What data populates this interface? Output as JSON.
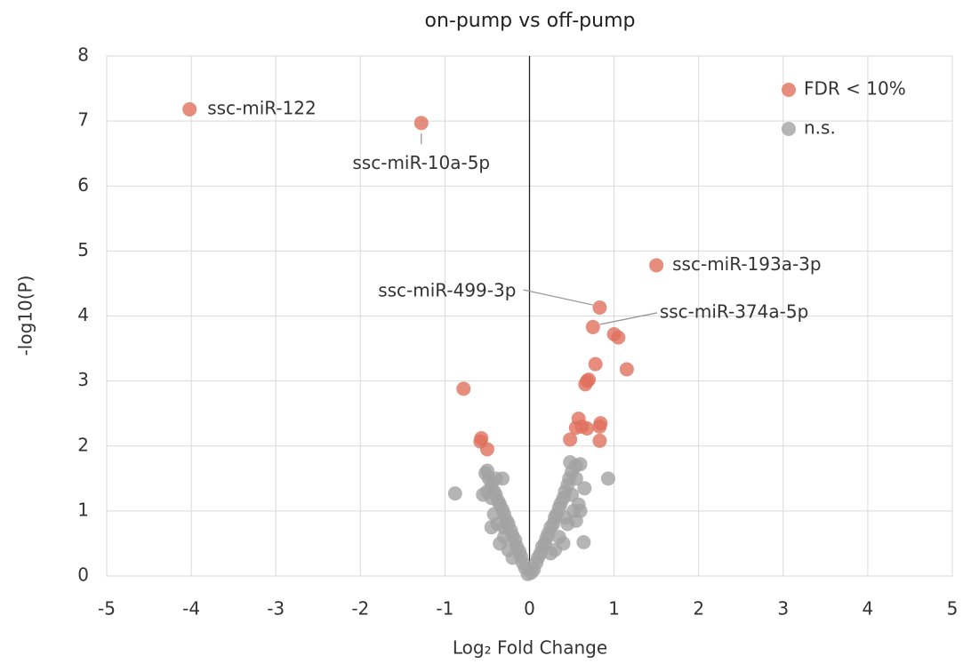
{
  "chart_data": {
    "type": "scatter",
    "title": "on-pump vs off-pump",
    "xlabel": "Log₂ Fold Change",
    "ylabel": "-log10(P)",
    "xlim": [
      -5,
      5
    ],
    "xticks": [
      -5,
      -4,
      -3,
      -2,
      -1,
      0,
      1,
      2,
      3,
      4,
      5
    ],
    "ylim": [
      0,
      8
    ],
    "yticks": [
      0,
      1,
      2,
      3,
      4,
      5,
      6,
      7,
      8
    ],
    "grid": true,
    "legend": "upper right",
    "series": [
      {
        "name": "FDR < 10%",
        "color": "#e0705e",
        "x": [
          -4.02,
          -1.28,
          1.5,
          0.83,
          0.75,
          1.0,
          1.05,
          0.78,
          1.15,
          0.68,
          0.7,
          0.66,
          -0.78,
          0.58,
          0.84,
          0.83,
          0.55,
          0.62,
          0.68,
          0.48,
          0.83,
          -0.57,
          -0.58,
          -0.5
        ],
        "values": [
          7.18,
          6.97,
          4.78,
          4.13,
          3.83,
          3.72,
          3.67,
          3.26,
          3.18,
          3.0,
          3.02,
          2.95,
          2.88,
          2.42,
          2.35,
          2.3,
          2.28,
          2.3,
          2.27,
          2.1,
          2.08,
          2.12,
          2.07,
          1.95
        ],
        "labels": [
          "ssc-miR-122",
          "ssc-miR-10a-5p",
          "ssc-miR-193a-3p",
          "ssc-miR-499-3p",
          "ssc-miR-374a-5p",
          null,
          null,
          null,
          null,
          null,
          null,
          null,
          null,
          null,
          null,
          null,
          null,
          null,
          null,
          null,
          null,
          null,
          null,
          null
        ]
      },
      {
        "name": "n.s.",
        "color": "#a3a3a3",
        "x": [
          -0.02,
          -0.05,
          -0.08,
          -0.1,
          -0.12,
          -0.15,
          -0.17,
          -0.2,
          -0.22,
          -0.25,
          -0.27,
          -0.3,
          -0.32,
          -0.35,
          -0.37,
          -0.4,
          -0.42,
          -0.45,
          -0.48,
          -0.5,
          -0.52,
          -0.38,
          -0.45,
          -0.3,
          -0.25,
          -0.35,
          -0.5,
          -0.55,
          -0.42,
          -0.2,
          -0.4,
          -0.45,
          -0.3,
          -0.88,
          -0.32,
          0.02,
          0.05,
          0.08,
          0.1,
          0.13,
          0.15,
          0.18,
          0.2,
          0.22,
          0.25,
          0.28,
          0.3,
          0.32,
          0.35,
          0.37,
          0.4,
          0.42,
          0.45,
          0.47,
          0.5,
          0.48,
          0.55,
          0.6,
          0.55,
          0.65,
          0.58,
          0.52,
          0.45,
          0.35,
          0.4,
          0.25,
          0.6,
          0.5,
          0.64,
          0.93,
          0.3,
          0.42,
          0.55
        ],
        "values": [
          0.03,
          0.12,
          0.2,
          0.3,
          0.38,
          0.45,
          0.55,
          0.62,
          0.7,
          0.8,
          0.85,
          0.95,
          1.02,
          1.1,
          1.15,
          1.25,
          1.3,
          1.4,
          1.5,
          1.62,
          1.58,
          0.8,
          0.75,
          0.6,
          0.4,
          0.5,
          1.3,
          1.25,
          0.95,
          0.28,
          1.5,
          1.2,
          0.75,
          1.27,
          1.5,
          0.05,
          0.1,
          0.2,
          0.28,
          0.35,
          0.45,
          0.5,
          0.58,
          0.65,
          0.75,
          0.8,
          0.9,
          0.95,
          1.05,
          1.12,
          1.2,
          1.3,
          1.4,
          1.5,
          1.6,
          1.75,
          1.7,
          1.72,
          1.5,
          1.35,
          1.1,
          1.0,
          0.8,
          0.6,
          0.5,
          0.35,
          1.0,
          1.25,
          0.52,
          1.5,
          0.4,
          0.9,
          0.85
        ]
      }
    ]
  }
}
